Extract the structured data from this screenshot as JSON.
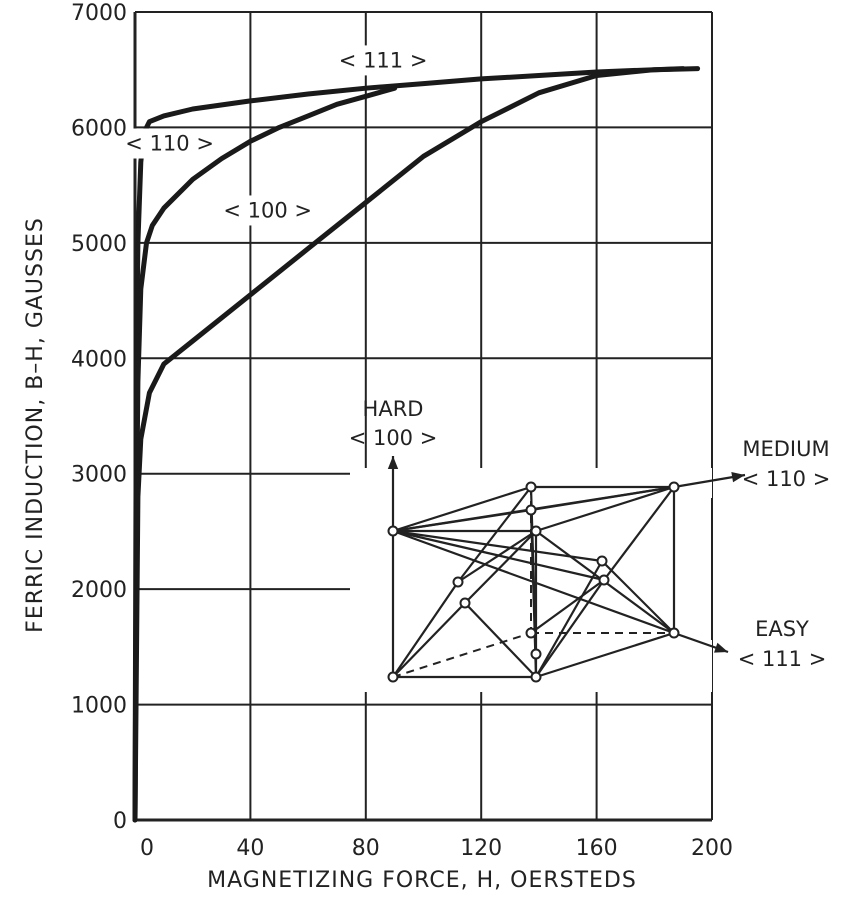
{
  "chart_data": {
    "type": "line",
    "xlabel": "MAGNETIZING FORCE, H, OERSTEDS",
    "ylabel": "FERRIC INDUCTION, B–H, GAUSSES",
    "xlim": [
      0,
      200
    ],
    "ylim": [
      0,
      7000
    ],
    "x_ticks": [
      "0",
      "40",
      "80",
      "120",
      "160",
      "200"
    ],
    "y_ticks": [
      "0",
      "1000",
      "2000",
      "3000",
      "4000",
      "5000",
      "6000",
      "7000"
    ],
    "grid": true,
    "series": [
      {
        "name": "< 111 >",
        "x": [
          0,
          0.5,
          1,
          2,
          3,
          5,
          10,
          20,
          40,
          60,
          80,
          100,
          120,
          140,
          160,
          180,
          190
        ],
        "y": [
          0,
          4000,
          5000,
          5700,
          5950,
          6050,
          6100,
          6160,
          6230,
          6290,
          6340,
          6380,
          6420,
          6450,
          6480,
          6500,
          6510
        ]
      },
      {
        "name": "< 110 >",
        "x": [
          0,
          0.5,
          1,
          2,
          4,
          6,
          10,
          20,
          30,
          40,
          50,
          60,
          70,
          80,
          90
        ],
        "y": [
          0,
          2500,
          3800,
          4600,
          5000,
          5150,
          5300,
          5550,
          5730,
          5880,
          6000,
          6100,
          6200,
          6270,
          6340
        ]
      },
      {
        "name": "< 100 >",
        "x": [
          0,
          1,
          2,
          5,
          10,
          20,
          40,
          60,
          80,
          100,
          120,
          140,
          160,
          180,
          195
        ],
        "y": [
          0,
          2800,
          3300,
          3700,
          3950,
          4150,
          4550,
          4950,
          5350,
          5750,
          6050,
          6300,
          6450,
          6500,
          6510
        ]
      }
    ],
    "inset": {
      "labels": [
        {
          "key": "hard",
          "lines": [
            "HARD",
            "< 100 >"
          ]
        },
        {
          "key": "medium",
          "lines": [
            "MEDIUM",
            "< 110 >"
          ]
        },
        {
          "key": "easy",
          "lines": [
            "EASY",
            "< 111 >"
          ]
        }
      ]
    }
  }
}
